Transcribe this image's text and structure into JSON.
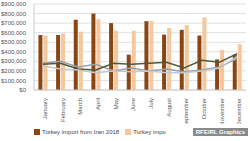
{
  "chart_data": {
    "type": "bar",
    "categories": [
      "January",
      "February",
      "March",
      "April",
      "May",
      "June",
      "July",
      "August",
      "September",
      "October",
      "November",
      "December"
    ],
    "series": [
      {
        "name": "Turkey import from Iran 2018",
        "type": "bar",
        "color": "#8b4513",
        "values": [
          575000,
          575000,
          735000,
          800000,
          700000,
          370000,
          720000,
          580000,
          630000,
          570000,
          320000,
          370000
        ]
      },
      {
        "name": "Turkey impo",
        "type": "bar",
        "color": "#f5c79b",
        "values": [
          570000,
          590000,
          610000,
          740000,
          620000,
          620000,
          720000,
          650000,
          680000,
          760000,
          420000,
          480000
        ]
      },
      {
        "type": "line",
        "color": "#9aa0a6",
        "values": [
          280000,
          300000,
          240000,
          270000,
          200000,
          230000,
          200000,
          220000,
          190000,
          210000,
          240000,
          330000
        ]
      },
      {
        "type": "line",
        "color": "#4f5a3c",
        "values": [
          270000,
          280000,
          220000,
          210000,
          280000,
          270000,
          280000,
          290000,
          230000,
          310000,
          290000,
          380000
        ]
      },
      {
        "type": "line",
        "color": "#c3c8cc",
        "values": [
          250000,
          220000,
          210000,
          180000,
          200000,
          190000,
          200000,
          180000,
          180000,
          200000,
          230000,
          350000
        ]
      }
    ],
    "ylim": [
      0,
      900000
    ],
    "yticks": [
      {
        "value": 0,
        "label": "$0"
      },
      {
        "value": 100000,
        "label": "$100,000"
      },
      {
        "value": 200000,
        "label": "$200,000"
      },
      {
        "value": 300000,
        "label": "$300,000"
      },
      {
        "value": 400000,
        "label": "$400,000"
      },
      {
        "value": 500000,
        "label": "$500,000"
      },
      {
        "value": 600000,
        "label": "$600,000"
      },
      {
        "value": 700000,
        "label": "$700,000"
      },
      {
        "value": 800000,
        "label": "$800,000"
      },
      {
        "value": 900000,
        "label": "$900,000"
      }
    ],
    "grid": true,
    "annotations": [
      "RFE/RL Graphics"
    ]
  }
}
